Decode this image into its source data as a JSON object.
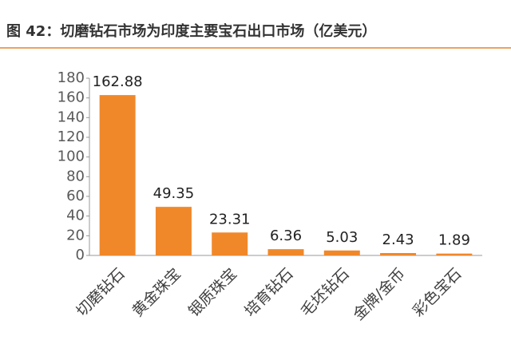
{
  "chart_data": {
    "type": "bar",
    "title": "图 42：切磨钻石市场为印度主要宝石出口市场（亿美元）",
    "categories": [
      "切磨钻石",
      "黄金珠宝",
      "银质珠宝",
      "培育钻石",
      "毛坯钻石",
      "金牌/金币",
      "彩色宝石"
    ],
    "values": [
      162.88,
      49.35,
      23.31,
      6.36,
      5.03,
      2.43,
      1.89
    ],
    "color": "#f0882a",
    "ylim": [
      0,
      180
    ],
    "yticks": [
      0,
      20,
      40,
      60,
      80,
      100,
      120,
      140,
      160,
      180
    ],
    "grid": false
  }
}
